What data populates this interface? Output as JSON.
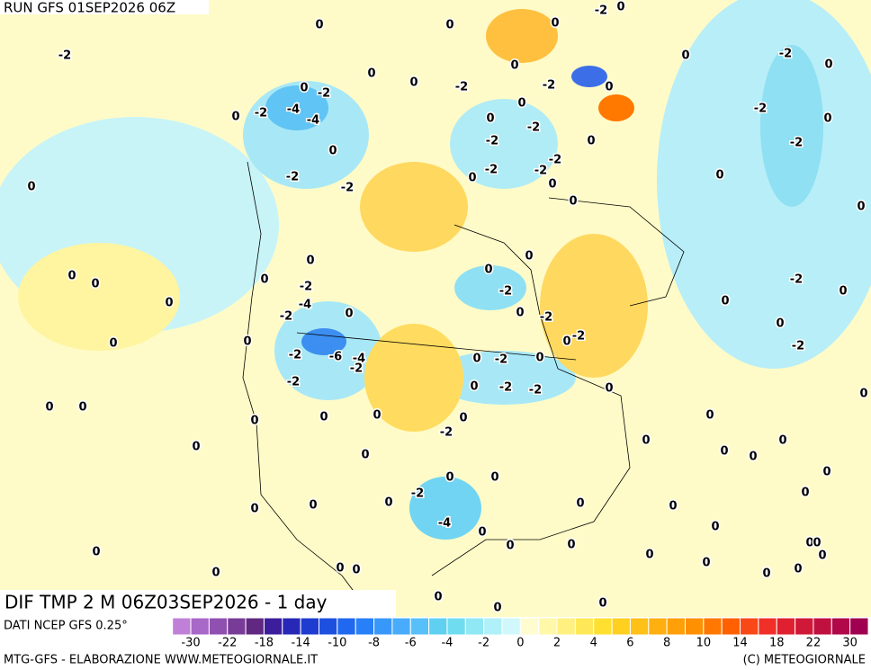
{
  "header": {
    "run": "RUN GFS 01SEP2026 06Z"
  },
  "map": {
    "title": "DIF TMP 2 M 06Z03SEP2026 - 1 day",
    "contour_labels": [
      0,
      -2,
      0,
      0,
      0,
      -2,
      0,
      0,
      -2,
      0,
      -2,
      0,
      0,
      -2,
      0,
      0,
      -2,
      -4,
      -4,
      -2,
      0,
      0,
      0,
      -2,
      -2,
      0,
      -2,
      -2,
      -2,
      0,
      0,
      -2,
      -2,
      0,
      0,
      -2,
      -2,
      0,
      0,
      0,
      0,
      0,
      0,
      0,
      -2,
      0,
      -2,
      -4,
      -2,
      0,
      0,
      -2,
      -2,
      0,
      0,
      0,
      0,
      0,
      -2,
      0,
      0,
      -2,
      0,
      0,
      -2,
      -6,
      -4,
      -2,
      0,
      -2,
      0,
      -2,
      0,
      -2,
      -2,
      0,
      0,
      0,
      0,
      0,
      0,
      0,
      0,
      -2,
      0,
      0,
      0,
      0,
      0,
      0,
      0,
      0,
      0,
      0,
      -2,
      -4,
      0,
      0,
      0,
      0,
      0,
      0,
      0,
      0,
      0,
      0,
      0,
      0,
      0,
      0,
      0,
      0,
      0,
      0,
      0,
      0,
      0,
      0,
      0,
      0
    ]
  },
  "colorbar": {
    "source": "DATI NCEP GFS 0.25°",
    "colors": [
      "#c080d8",
      "#a868c8",
      "#9050b0",
      "#783c98",
      "#602880",
      "#3c1e9c",
      "#2828b8",
      "#1e3cd0",
      "#1e50e0",
      "#2068f0",
      "#2880f8",
      "#3898fa",
      "#48acfa",
      "#58c0f8",
      "#60d0f0",
      "#70dcf0",
      "#90e8f4",
      "#b0f0f8",
      "#d0f8fc",
      "#fffcd0",
      "#fff8a8",
      "#fff080",
      "#ffe858",
      "#ffe030",
      "#ffd020",
      "#ffc018",
      "#ffb010",
      "#ffa008",
      "#ff9000",
      "#ff7800",
      "#ff6000",
      "#f84818",
      "#f03028",
      "#e02030",
      "#d01838",
      "#c01040",
      "#b00848",
      "#a00050"
    ],
    "ticks": [
      -30,
      -22,
      -18,
      -14,
      -10,
      -8,
      -6,
      -4,
      -2,
      0,
      2,
      4,
      6,
      8,
      10,
      14,
      18,
      22,
      30
    ]
  },
  "footer": {
    "left": "MTG-GFS - ELABORAZIONE WWW.METEOGIORNALE.IT",
    "right": "(C) METEOGIORNALE"
  }
}
